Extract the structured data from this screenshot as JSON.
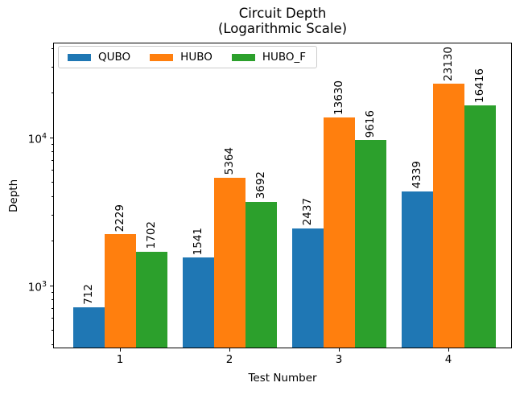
{
  "title": {
    "line1": "Circuit Depth",
    "line2": "(Logarithmic Scale)"
  },
  "chart_data": {
    "type": "bar",
    "title": "Circuit Depth\n(Logarithmic Scale)",
    "xlabel": "Test Number",
    "ylabel": "Depth",
    "yscale": "log",
    "ylim": [
      380,
      44000
    ],
    "categories": [
      "1",
      "2",
      "3",
      "4"
    ],
    "series": [
      {
        "name": "QUBO",
        "color": "#1f77b4",
        "values": [
          712,
          1541,
          2437,
          4339
        ]
      },
      {
        "name": "HUBO",
        "color": "#ff7f0e",
        "values": [
          2229,
          5364,
          13630,
          23130
        ]
      },
      {
        "name": "HUBO_F",
        "color": "#2ca02c",
        "values": [
          1702,
          3692,
          9616,
          16416
        ]
      }
    ],
    "bar_value_labels": [
      "712",
      "1541",
      "2437",
      "4339",
      "2229",
      "5364",
      "13630",
      "23130",
      "1702",
      "3692",
      "9616",
      "16416"
    ],
    "bar_label_rotation": 90,
    "yticks": [
      {
        "value": 1000,
        "base": "10",
        "exponent": "3"
      },
      {
        "value": 10000,
        "base": "10",
        "exponent": "4"
      }
    ],
    "legend_position": "upper left",
    "grid": false
  }
}
